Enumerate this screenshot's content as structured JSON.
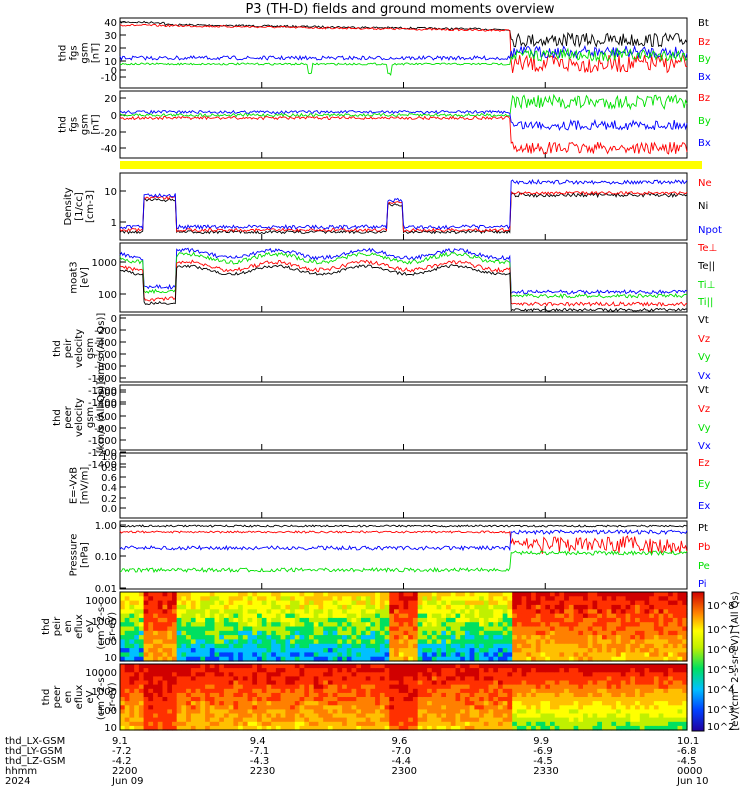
{
  "title": "P3 (TH-D) fields and ground moments overview",
  "colors": {
    "black": "#000000",
    "red": "#ff0000",
    "green": "#00e000",
    "blue": "#0000ff",
    "yellow": "#ffff00"
  },
  "time_axis": {
    "major_ticks": [
      "2200",
      "2230",
      "2300",
      "2330",
      "0000"
    ],
    "rows": [
      {
        "label": "thd_LX-GSM",
        "values": [
          "9.1",
          "9.4",
          "9.6",
          "9.9",
          "10.1"
        ]
      },
      {
        "label": "thd_LY-GSM",
        "values": [
          "-7.2",
          "-7.1",
          "-7.0",
          "-6.9",
          "-6.8"
        ]
      },
      {
        "label": "thd_LZ-GSM",
        "values": [
          "-4.2",
          "-4.3",
          "-4.4",
          "-4.5",
          "-4.5"
        ]
      },
      {
        "label": "hhmm",
        "values": [
          "2200",
          "2230",
          "2300",
          "2330",
          "0000"
        ]
      },
      {
        "label": "2024",
        "values": [
          "Jun 09",
          "",
          "",
          "",
          "Jun 10"
        ]
      }
    ]
  },
  "colorbar": {
    "label": "[eV/(cm^2-s-sr-eV)] (All Qs)",
    "ticks": [
      "10^8",
      "10^7",
      "10^6",
      "10^5",
      "10^4",
      "10^3",
      "10^2"
    ]
  },
  "chart_data": [
    {
      "type": "line",
      "ylabel_lines": [
        "thd",
        "fgs",
        "gsm",
        "[nT]"
      ],
      "yticks": [
        "40",
        "30",
        "20",
        "10",
        "0",
        "-10"
      ],
      "ylim": [
        -20,
        45
      ],
      "legend": [
        {
          "name": "Bt",
          "color": "#000000"
        },
        {
          "name": "Bz",
          "color": "#ff0000"
        },
        {
          "name": "By",
          "color": "#00e000"
        },
        {
          "name": "Bx",
          "color": "#0000ff"
        }
      ]
    },
    {
      "type": "line",
      "ylabel_lines": [
        "thd",
        "fgs",
        "gsm",
        "[nT]"
      ],
      "yticks": [
        "20",
        "0",
        "-20",
        "-40"
      ],
      "ylim": [
        -55,
        30
      ],
      "legend": [
        {
          "name": "Bz",
          "color": "#ff0000"
        },
        {
          "name": "By",
          "color": "#00e000"
        },
        {
          "name": "Bx",
          "color": "#0000ff"
        }
      ]
    },
    {
      "type": "line",
      "ylabel_lines": [
        "Density",
        "[1/cc]",
        "[cm-3]"
      ],
      "yticks": [
        "10",
        "1"
      ],
      "log": true,
      "legend": [
        {
          "name": "Ne",
          "color": "#ff0000"
        },
        {
          "name": "Ni",
          "color": "#000000"
        },
        {
          "name": "Npot",
          "color": "#0000ff"
        }
      ]
    },
    {
      "type": "line",
      "ylabel_lines": [
        "moat3",
        "[eV]"
      ],
      "yticks": [
        "1000",
        "100"
      ],
      "log": true,
      "legend": [
        {
          "name": "Te⊥",
          "color": "#ff0000"
        },
        {
          "name": "Te||",
          "color": "#000000"
        },
        {
          "name": "Ti⊥",
          "color": "#00e000"
        },
        {
          "name": "Ti||",
          "color": "#00e000"
        }
      ]
    },
    {
      "type": "line",
      "ylabel_lines": [
        "thd",
        "peir",
        "velocity",
        "gsm",
        "[km/s (All Qs)]"
      ],
      "yticks": [
        "0",
        "-200",
        "-400",
        "-600",
        "-800",
        "-1000",
        "-1200",
        "-1400"
      ],
      "ylim": [
        -1500,
        0
      ],
      "legend": [
        {
          "name": "Vt",
          "color": "#000000"
        },
        {
          "name": "Vz",
          "color": "#ff0000"
        },
        {
          "name": "Vy",
          "color": "#00e000"
        },
        {
          "name": "Vx",
          "color": "#0000ff"
        }
      ]
    },
    {
      "type": "line",
      "ylabel_lines": [
        "thd",
        "peer",
        "velocity",
        "gsm",
        "[km/s (All Qs)]"
      ],
      "yticks": [
        "-200",
        "-400",
        "-600",
        "-800",
        "-1000",
        "-1200",
        "-1400"
      ],
      "ylim": [
        -1500,
        0
      ],
      "legend": [
        {
          "name": "Vt",
          "color": "#000000"
        },
        {
          "name": "Vz",
          "color": "#ff0000"
        },
        {
          "name": "Vy",
          "color": "#00e000"
        },
        {
          "name": "Vx",
          "color": "#0000ff"
        }
      ]
    },
    {
      "type": "line",
      "ylabel_lines": [
        "E=-VxB",
        "[mV/m]"
      ],
      "yticks": [
        "1.0",
        "0.8",
        "0.6",
        "0.4",
        "0.2",
        "0.0"
      ],
      "ylim": [
        0,
        1
      ],
      "legend": [
        {
          "name": "Ez",
          "color": "#ff0000"
        },
        {
          "name": "Ey",
          "color": "#00e000"
        },
        {
          "name": "Ex",
          "color": "#0000ff"
        }
      ]
    },
    {
      "type": "line",
      "ylabel_lines": [
        "Pressure",
        "[nPa]"
      ],
      "yticks": [
        "1.00",
        "0.10",
        "0.01"
      ],
      "log": true,
      "legend": [
        {
          "name": "Pt",
          "color": "#000000"
        },
        {
          "name": "Pb",
          "color": "#ff0000"
        },
        {
          "name": "Pe",
          "color": "#00e000"
        },
        {
          "name": "Pi",
          "color": "#0000ff"
        }
      ]
    },
    {
      "type": "heatmap",
      "ylabel_lines": [
        "thd",
        "peir",
        "en",
        "eflux",
        "eV",
        "(cm^2-s-",
        "sr-eV)"
      ],
      "yticks": [
        "10000",
        "1000",
        "100",
        "10"
      ]
    },
    {
      "type": "heatmap",
      "ylabel_lines": [
        "thd",
        "peer",
        "en",
        "eflux",
        "eV",
        "(cm^2-s-",
        "sr-eV)"
      ],
      "yticks": [
        "10000",
        "1000",
        "100",
        "10"
      ]
    }
  ]
}
